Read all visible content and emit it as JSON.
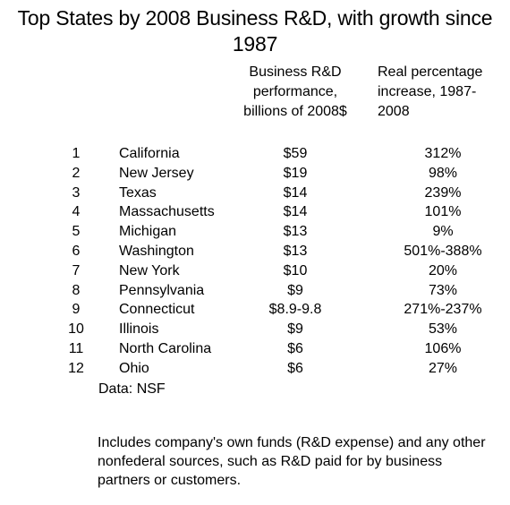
{
  "chart_data": {
    "type": "table",
    "title_lines": [
      "Top States by 2008 Business R&D, with growth since",
      "1987"
    ],
    "column_header_rd": [
      "Business R&D",
      "performance,",
      "billions of 2008$"
    ],
    "column_header_growth": [
      "Real percentage",
      "increase, 1987-",
      "2008"
    ],
    "rows": [
      {
        "rank": "1",
        "state": "California",
        "rd": "$59",
        "growth": "312%"
      },
      {
        "rank": "2",
        "state": "New Jersey",
        "rd": "$19",
        "growth": "98%"
      },
      {
        "rank": "3",
        "state": "Texas",
        "rd": "$14",
        "growth": "239%"
      },
      {
        "rank": "4",
        "state": "Massachusetts",
        "rd": "$14",
        "growth": "101%"
      },
      {
        "rank": "5",
        "state": "Michigan",
        "rd": "$13",
        "growth": "9%"
      },
      {
        "rank": "6",
        "state": "Washington",
        "rd": "$13",
        "growth": "501%-388%"
      },
      {
        "rank": "7",
        "state": "New York",
        "rd": "$10",
        "growth": "20%"
      },
      {
        "rank": "8",
        "state": "Pennsylvania",
        "rd": "$9",
        "growth": "73%"
      },
      {
        "rank": "9",
        "state": "Connecticut",
        "rd": "$8.9-9.8",
        "growth": "271%-237%"
      },
      {
        "rank": "10",
        "state": "Illinois",
        "rd": "$9",
        "growth": "53%"
      },
      {
        "rank": "11",
        "state": "North Carolina",
        "rd": "$6",
        "growth": "106%"
      },
      {
        "rank": "12",
        "state": "Ohio",
        "rd": "$6",
        "growth": "27%"
      }
    ],
    "source": "Data: NSF",
    "footnote_lines": [
      " Includes company's own funds (R&D expense) and any other",
      "nonfederal sources, such as R&D paid for by business",
      "partners or customers."
    ]
  }
}
